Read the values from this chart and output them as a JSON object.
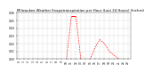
{
  "title": "Milwaukee Weather Evapotranspiration per Hour (Last 24 Hours) (Inches)",
  "hours": [
    0,
    1,
    2,
    3,
    4,
    5,
    6,
    7,
    8,
    9,
    10,
    11,
    12,
    13,
    14,
    15,
    16,
    17,
    18,
    19,
    20,
    21,
    22,
    23
  ],
  "values": [
    0.0,
    0.0,
    0.0,
    0.0,
    0.0,
    0.0,
    0.0,
    0.0,
    0.0,
    0.0,
    0.0,
    0.055,
    0.055,
    0.0,
    0.0,
    0.0,
    0.015,
    0.025,
    0.02,
    0.01,
    0.005,
    0.0,
    0.0,
    0.0
  ],
  "line_color": "#ff0000",
  "bg_color": "#ffffff",
  "ylim": [
    0,
    0.06
  ],
  "xlim": [
    -0.5,
    23.5
  ],
  "grid_color": "#888888",
  "title_fontsize": 2.8,
  "tick_fontsize": 2.2,
  "ylabel_values": [
    0.0,
    0.01,
    0.02,
    0.03,
    0.04,
    0.05,
    0.06
  ],
  "hline_y": 0.055,
  "hline_x0": 11,
  "hline_x1": 12
}
